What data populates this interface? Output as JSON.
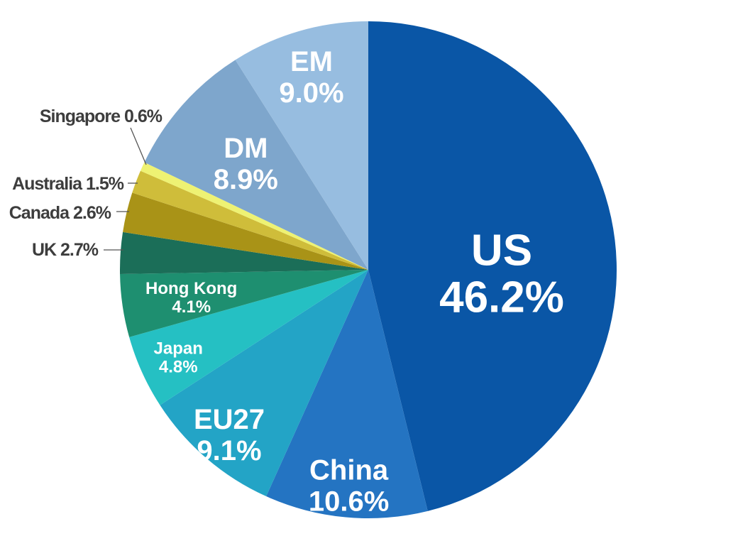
{
  "chart_data": {
    "type": "pie",
    "unit": "%",
    "start": "12 o'clock",
    "direction": "clockwise",
    "slices": [
      {
        "label": "US",
        "value": 46.2,
        "value_text": "46.2%",
        "color": "#0a56a6",
        "label_style": "inside-large"
      },
      {
        "label": "China",
        "value": 10.6,
        "value_text": "10.6%",
        "color": "#2474c2",
        "label_style": "inside"
      },
      {
        "label": "EU27",
        "value": 9.1,
        "value_text": "9.1%",
        "color": "#23a4c6",
        "label_style": "inside"
      },
      {
        "label": "Japan",
        "value": 4.8,
        "value_text": "4.8%",
        "color": "#25c0c3",
        "label_style": "inside-small"
      },
      {
        "label": "Hong Kong",
        "value": 4.1,
        "value_text": "4.1%",
        "color": "#1e8f70",
        "label_style": "inside-small"
      },
      {
        "label": "UK",
        "value": 2.7,
        "value_text": "2.7%",
        "color": "#1b6e58",
        "label_style": "outside"
      },
      {
        "label": "Canada",
        "value": 2.6,
        "value_text": "2.6%",
        "color": "#a99317",
        "label_style": "outside"
      },
      {
        "label": "Australia",
        "value": 1.5,
        "value_text": "1.5%",
        "color": "#cfbd3a",
        "label_style": "outside"
      },
      {
        "label": "Singapore",
        "value": 0.6,
        "value_text": "0.6%",
        "color": "#eef273",
        "label_style": "outside"
      },
      {
        "label": "DM",
        "value": 8.9,
        "value_text": "8.9%",
        "color": "#7ea6cc",
        "label_style": "inside"
      },
      {
        "label": "EM",
        "value": 9.0,
        "value_text": "9.0%",
        "color": "#97bde0",
        "label_style": "inside"
      }
    ]
  }
}
